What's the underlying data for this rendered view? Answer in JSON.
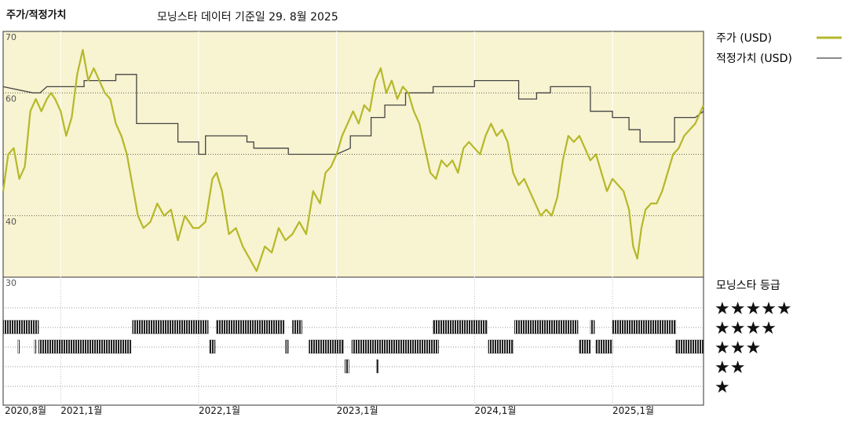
{
  "header": {
    "left_title": "주가/적정가치",
    "center_title": "모닝스타 데이터 기준일 29. 8월 2025"
  },
  "legend": {
    "price_label": "주가 (USD)",
    "fair_label": "적정가치 (USD)",
    "rating_label": "모닝스타 등급"
  },
  "stars": [
    "★★★★★",
    "★★★★",
    "★★★",
    "★★",
    "★"
  ],
  "colors": {
    "price": "#b5b82a",
    "fair": "#444444",
    "panel": "#f8f3d0",
    "grid": "#333333"
  },
  "chart_data": {
    "type": "line",
    "ylim": [
      30,
      70
    ],
    "yticks": [
      70,
      60,
      40,
      30
    ],
    "grid_dotted_y": [
      60,
      50,
      40
    ],
    "xticks": [
      {
        "label": "2020,8월",
        "t": 2020.583
      },
      {
        "label": "2021,1월",
        "t": 2021.0
      },
      {
        "label": "2022,1월",
        "t": 2022.0
      },
      {
        "label": "2023,1월",
        "t": 2023.0
      },
      {
        "label": "2024,1월",
        "t": 2024.0
      },
      {
        "label": "2025,1월",
        "t": 2025.0
      }
    ],
    "xrange": [
      2020.583,
      2025.66
    ],
    "series": [
      {
        "name": "주가 (USD)",
        "points": [
          [
            2020.583,
            44
          ],
          [
            2020.62,
            50
          ],
          [
            2020.66,
            51
          ],
          [
            2020.7,
            46
          ],
          [
            2020.74,
            48
          ],
          [
            2020.78,
            57
          ],
          [
            2020.82,
            59
          ],
          [
            2020.86,
            57
          ],
          [
            2020.9,
            59
          ],
          [
            2020.93,
            60
          ],
          [
            2020.96,
            59
          ],
          [
            2021.0,
            57
          ],
          [
            2021.04,
            53
          ],
          [
            2021.08,
            56
          ],
          [
            2021.12,
            63
          ],
          [
            2021.16,
            67
          ],
          [
            2021.2,
            62
          ],
          [
            2021.24,
            64
          ],
          [
            2021.28,
            62
          ],
          [
            2021.32,
            60
          ],
          [
            2021.36,
            59
          ],
          [
            2021.4,
            55
          ],
          [
            2021.44,
            53
          ],
          [
            2021.48,
            50
          ],
          [
            2021.52,
            45
          ],
          [
            2021.56,
            40
          ],
          [
            2021.6,
            38
          ],
          [
            2021.65,
            39
          ],
          [
            2021.7,
            42
          ],
          [
            2021.75,
            40
          ],
          [
            2021.8,
            41
          ],
          [
            2021.85,
            36
          ],
          [
            2021.9,
            40
          ],
          [
            2021.96,
            38
          ],
          [
            2022.0,
            38
          ],
          [
            2022.05,
            39
          ],
          [
            2022.1,
            46
          ],
          [
            2022.13,
            47
          ],
          [
            2022.17,
            44
          ],
          [
            2022.22,
            37
          ],
          [
            2022.27,
            38
          ],
          [
            2022.32,
            35
          ],
          [
            2022.37,
            33
          ],
          [
            2022.42,
            31
          ],
          [
            2022.48,
            35
          ],
          [
            2022.53,
            34
          ],
          [
            2022.58,
            38
          ],
          [
            2022.63,
            36
          ],
          [
            2022.68,
            37
          ],
          [
            2022.73,
            39
          ],
          [
            2022.78,
            37
          ],
          [
            2022.83,
            44
          ],
          [
            2022.88,
            42
          ],
          [
            2022.92,
            47
          ],
          [
            2022.96,
            48
          ],
          [
            2023.0,
            50
          ],
          [
            2023.04,
            53
          ],
          [
            2023.08,
            55
          ],
          [
            2023.12,
            57
          ],
          [
            2023.16,
            55
          ],
          [
            2023.2,
            58
          ],
          [
            2023.24,
            57
          ],
          [
            2023.28,
            62
          ],
          [
            2023.32,
            64
          ],
          [
            2023.36,
            60
          ],
          [
            2023.4,
            62
          ],
          [
            2023.44,
            59
          ],
          [
            2023.48,
            61
          ],
          [
            2023.52,
            60
          ],
          [
            2023.56,
            57
          ],
          [
            2023.6,
            55
          ],
          [
            2023.64,
            51
          ],
          [
            2023.68,
            47
          ],
          [
            2023.72,
            46
          ],
          [
            2023.76,
            49
          ],
          [
            2023.8,
            48
          ],
          [
            2023.84,
            49
          ],
          [
            2023.88,
            47
          ],
          [
            2023.92,
            51
          ],
          [
            2023.96,
            52
          ],
          [
            2024.0,
            51
          ],
          [
            2024.04,
            50
          ],
          [
            2024.08,
            53
          ],
          [
            2024.12,
            55
          ],
          [
            2024.16,
            53
          ],
          [
            2024.2,
            54
          ],
          [
            2024.24,
            52
          ],
          [
            2024.28,
            47
          ],
          [
            2024.32,
            45
          ],
          [
            2024.36,
            46
          ],
          [
            2024.4,
            44
          ],
          [
            2024.44,
            42
          ],
          [
            2024.48,
            40
          ],
          [
            2024.52,
            41
          ],
          [
            2024.56,
            40
          ],
          [
            2024.6,
            43
          ],
          [
            2024.64,
            49
          ],
          [
            2024.68,
            53
          ],
          [
            2024.72,
            52
          ],
          [
            2024.76,
            53
          ],
          [
            2024.8,
            51
          ],
          [
            2024.84,
            49
          ],
          [
            2024.88,
            50
          ],
          [
            2024.92,
            47
          ],
          [
            2024.96,
            44
          ],
          [
            2025.0,
            46
          ],
          [
            2025.04,
            45
          ],
          [
            2025.08,
            44
          ],
          [
            2025.12,
            41
          ],
          [
            2025.15,
            35
          ],
          [
            2025.18,
            33
          ],
          [
            2025.21,
            38
          ],
          [
            2025.24,
            41
          ],
          [
            2025.28,
            42
          ],
          [
            2025.32,
            42
          ],
          [
            2025.36,
            44
          ],
          [
            2025.4,
            47
          ],
          [
            2025.44,
            50
          ],
          [
            2025.48,
            51
          ],
          [
            2025.52,
            53
          ],
          [
            2025.56,
            54
          ],
          [
            2025.6,
            55
          ],
          [
            2025.64,
            57
          ],
          [
            2025.66,
            58
          ]
        ]
      },
      {
        "name": "적정가치 (USD)",
        "points": [
          [
            2020.583,
            61
          ],
          [
            2020.8,
            60
          ],
          [
            2020.85,
            60
          ],
          [
            2020.9,
            61
          ],
          [
            2021.0,
            61
          ],
          [
            2021.17,
            61
          ],
          [
            2021.17,
            62
          ],
          [
            2021.4,
            62
          ],
          [
            2021.4,
            63
          ],
          [
            2021.55,
            63
          ],
          [
            2021.55,
            55
          ],
          [
            2021.85,
            55
          ],
          [
            2021.85,
            52
          ],
          [
            2022.0,
            52
          ],
          [
            2022.0,
            50
          ],
          [
            2022.05,
            50
          ],
          [
            2022.05,
            53
          ],
          [
            2022.35,
            53
          ],
          [
            2022.35,
            52
          ],
          [
            2022.4,
            52
          ],
          [
            2022.4,
            51
          ],
          [
            2022.65,
            51
          ],
          [
            2022.65,
            50
          ],
          [
            2022.85,
            50
          ],
          [
            2022.85,
            50
          ],
          [
            2023.0,
            50
          ],
          [
            2023.1,
            51
          ],
          [
            2023.1,
            53
          ],
          [
            2023.25,
            53
          ],
          [
            2023.25,
            56
          ],
          [
            2023.35,
            56
          ],
          [
            2023.35,
            58
          ],
          [
            2023.5,
            58
          ],
          [
            2023.5,
            60
          ],
          [
            2023.7,
            60
          ],
          [
            2023.7,
            61
          ],
          [
            2023.9,
            61
          ],
          [
            2024.0,
            61
          ],
          [
            2024.0,
            62
          ],
          [
            2024.32,
            62
          ],
          [
            2024.32,
            59
          ],
          [
            2024.45,
            59
          ],
          [
            2024.45,
            60
          ],
          [
            2024.55,
            60
          ],
          [
            2024.55,
            61
          ],
          [
            2024.84,
            61
          ],
          [
            2024.84,
            57
          ],
          [
            2025.0,
            57
          ],
          [
            2025.0,
            56
          ],
          [
            2025.12,
            56
          ],
          [
            2025.12,
            54
          ],
          [
            2025.2,
            54
          ],
          [
            2025.2,
            52
          ],
          [
            2025.45,
            52
          ],
          [
            2025.45,
            56
          ],
          [
            2025.6,
            56
          ],
          [
            2025.66,
            57
          ]
        ]
      }
    ],
    "rating_rows": [
      {
        "stars": 5,
        "periods": []
      },
      {
        "stars": 4,
        "periods": [
          [
            2020.583,
            2020.84
          ],
          [
            2021.52,
            2022.07
          ],
          [
            2022.13,
            2022.62
          ],
          [
            2022.68,
            2022.75
          ],
          [
            2023.7,
            2024.09
          ],
          [
            2024.29,
            2024.75
          ],
          [
            2024.84,
            2024.87
          ],
          [
            2025.0,
            2025.46
          ]
        ]
      },
      {
        "stars": 3,
        "periods": [
          [
            2020.69,
            2020.7
          ],
          [
            2020.81,
            2020.82
          ],
          [
            2020.84,
            2021.51
          ],
          [
            2022.08,
            2022.12
          ],
          [
            2022.63,
            2022.65
          ],
          [
            2022.8,
            2023.05
          ],
          [
            2023.11,
            2023.74
          ],
          [
            2024.1,
            2024.28
          ],
          [
            2024.76,
            2024.84
          ],
          [
            2024.88,
            2025.0
          ],
          [
            2025.46,
            2025.66
          ]
        ]
      },
      {
        "stars": 2,
        "periods": [
          [
            2023.06,
            2023.09
          ],
          [
            2023.29,
            2023.3
          ]
        ]
      },
      {
        "stars": 1,
        "periods": []
      }
    ]
  }
}
